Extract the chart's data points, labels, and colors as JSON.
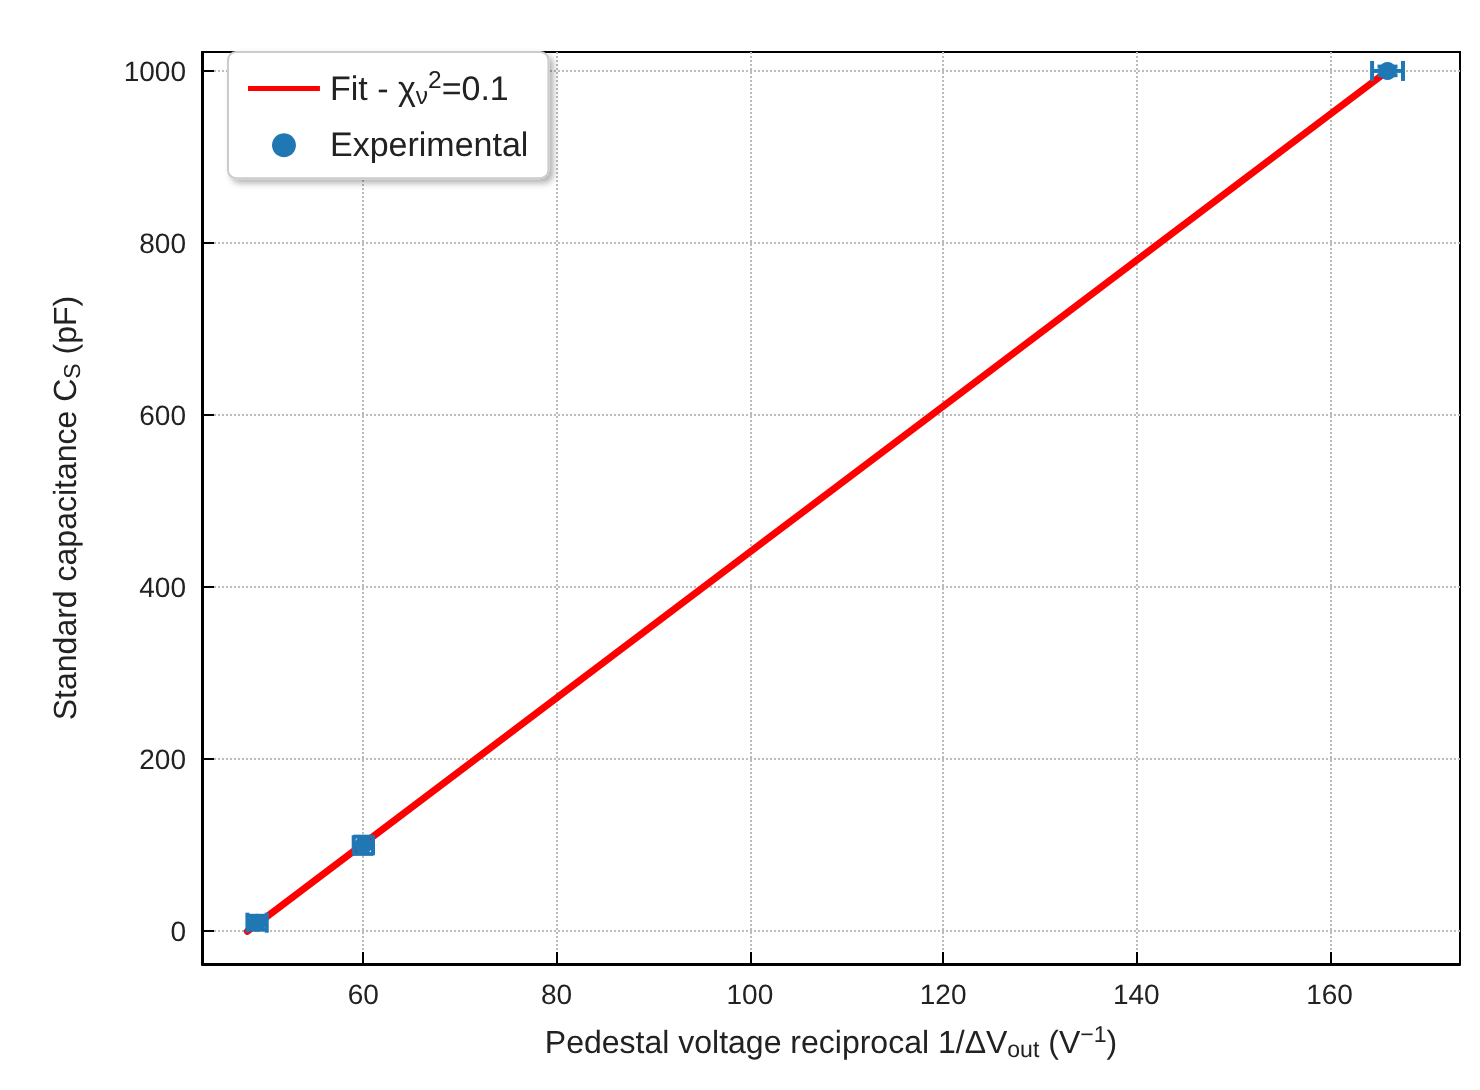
{
  "chart_data": {
    "type": "scatter",
    "xlabel": "Pedestal voltage reciprocal 1/ΔV$_{out}$ (V$^{−1}$)",
    "ylabel": "Standard capacitance C$_{S}$ (pF)",
    "xlim": [
      43.3,
      173.5
    ],
    "xticks": [
      60,
      80,
      100,
      120,
      140,
      160
    ],
    "ylim": [
      -38,
      1022
    ],
    "yticks": [
      0,
      200,
      400,
      600,
      800,
      1000
    ],
    "grid": true,
    "legend": "top left",
    "series": [
      {
        "name": "Fit - χ$_{ν}$$^{2}$=0.1",
        "type": "line",
        "color": "#ff0000",
        "x": [
          48,
          166
        ],
        "values": [
          0,
          1000
        ],
        "marker": "none",
        "line_style": "solid"
      },
      {
        "name": "Experimental",
        "color": "#1f77b4",
        "x": [
          49,
          60,
          166
        ],
        "values": [
          10,
          100,
          1000
        ],
        "errors": [
          8,
          10,
          5
        ],
        "xerrors": [
          1,
          1,
          1.6
        ],
        "marker": "circle"
      }
    ]
  }
}
